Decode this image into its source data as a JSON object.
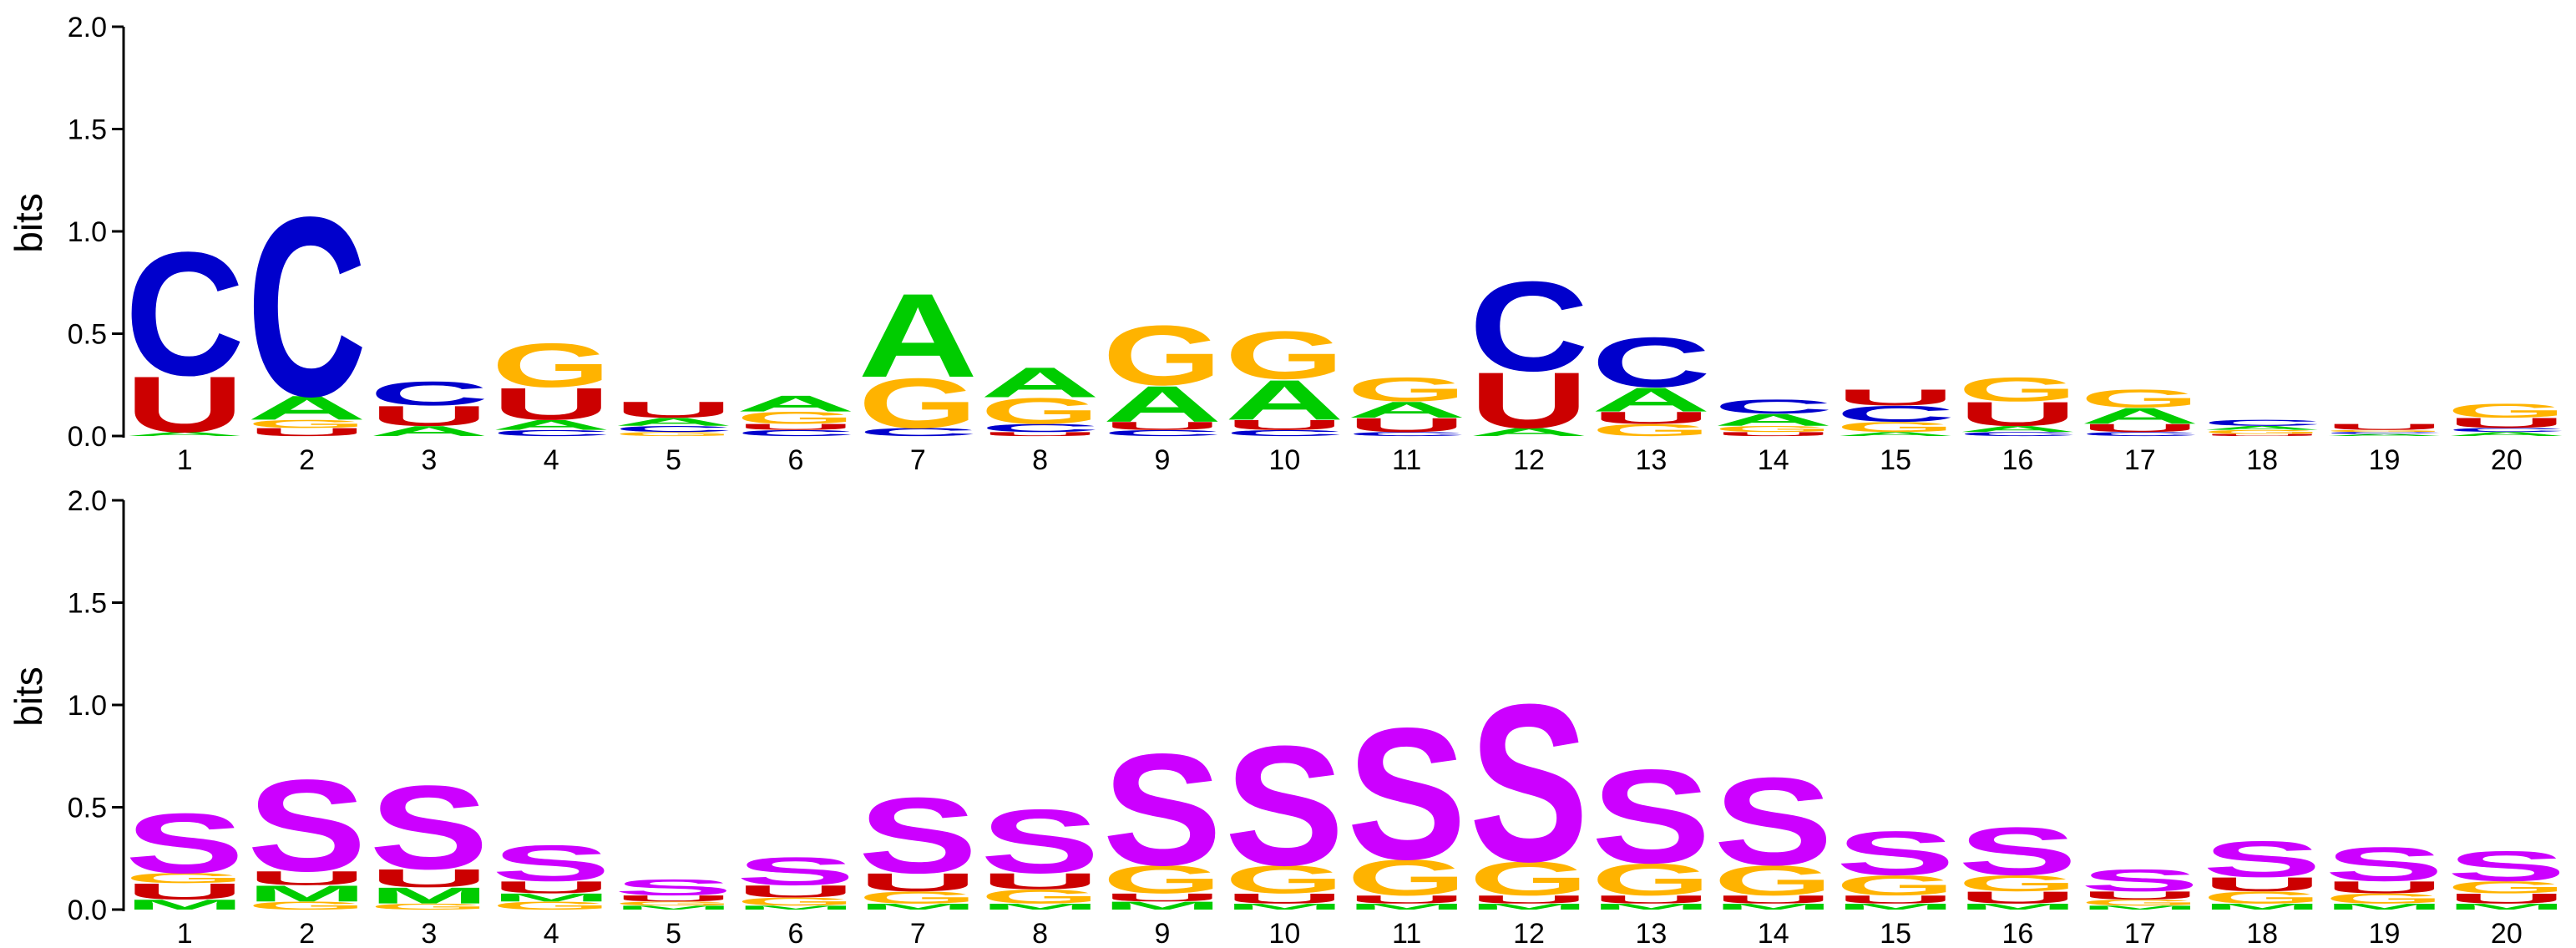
{
  "colors": {
    "A": "#00cc00",
    "C": "#0000cc",
    "G": "#ffb300",
    "U": "#cc0000",
    "S": "#cc00ff",
    "M": "#00cc00"
  },
  "chart_data": [
    {
      "type": "sequence-logo",
      "ylabel": "bits",
      "ylim": [
        0,
        2.0
      ],
      "yticks": [
        "0.0",
        "0.5",
        "1.0",
        "1.5",
        "2.0"
      ],
      "positions": [
        "1",
        "2",
        "3",
        "4",
        "5",
        "6",
        "7",
        "8",
        "9",
        "10",
        "11",
        "12",
        "13",
        "14",
        "15",
        "16",
        "17",
        "18",
        "19",
        "20"
      ],
      "stacks": [
        [
          {
            "letter": "A",
            "height": 0.02
          },
          {
            "letter": "U",
            "height": 0.28
          },
          {
            "letter": "C",
            "height": 0.62
          }
        ],
        [
          {
            "letter": "U",
            "height": 0.04
          },
          {
            "letter": "G",
            "height": 0.04
          },
          {
            "letter": "A",
            "height": 0.12
          },
          {
            "letter": "C",
            "height": 0.9
          }
        ],
        [
          {
            "letter": "A",
            "height": 0.05
          },
          {
            "letter": "U",
            "height": 0.1
          },
          {
            "letter": "C",
            "height": 0.12
          }
        ],
        [
          {
            "letter": "C",
            "height": 0.03
          },
          {
            "letter": "A",
            "height": 0.05
          },
          {
            "letter": "U",
            "height": 0.16
          },
          {
            "letter": "G",
            "height": 0.22
          }
        ],
        [
          {
            "letter": "G",
            "height": 0.02
          },
          {
            "letter": "C",
            "height": 0.03
          },
          {
            "letter": "A",
            "height": 0.04
          },
          {
            "letter": "U",
            "height": 0.08
          }
        ],
        [
          {
            "letter": "C",
            "height": 0.03
          },
          {
            "letter": "U",
            "height": 0.03
          },
          {
            "letter": "G",
            "height": 0.06
          },
          {
            "letter": "A",
            "height": 0.08
          }
        ],
        [
          {
            "letter": "C",
            "height": 0.04
          },
          {
            "letter": "G",
            "height": 0.25
          },
          {
            "letter": "A",
            "height": 0.42
          }
        ],
        [
          {
            "letter": "U",
            "height": 0.02
          },
          {
            "letter": "C",
            "height": 0.04
          },
          {
            "letter": "G",
            "height": 0.13
          },
          {
            "letter": "A",
            "height": 0.15
          }
        ],
        [
          {
            "letter": "C",
            "height": 0.03
          },
          {
            "letter": "U",
            "height": 0.04
          },
          {
            "letter": "A",
            "height": 0.18
          },
          {
            "letter": "G",
            "height": 0.3
          }
        ],
        [
          {
            "letter": "C",
            "height": 0.03
          },
          {
            "letter": "U",
            "height": 0.05
          },
          {
            "letter": "A",
            "height": 0.2
          },
          {
            "letter": "G",
            "height": 0.24
          }
        ],
        [
          {
            "letter": "C",
            "height": 0.02
          },
          {
            "letter": "U",
            "height": 0.07
          },
          {
            "letter": "A",
            "height": 0.08
          },
          {
            "letter": "G",
            "height": 0.12
          }
        ],
        [
          {
            "letter": "A",
            "height": 0.04
          },
          {
            "letter": "U",
            "height": 0.28
          },
          {
            "letter": "C",
            "height": 0.45
          }
        ],
        [
          {
            "letter": "G",
            "height": 0.06
          },
          {
            "letter": "U",
            "height": 0.06
          },
          {
            "letter": "A",
            "height": 0.12
          },
          {
            "letter": "C",
            "height": 0.25
          }
        ],
        [
          {
            "letter": "U",
            "height": 0.02
          },
          {
            "letter": "G",
            "height": 0.03
          },
          {
            "letter": "A",
            "height": 0.06
          },
          {
            "letter": "C",
            "height": 0.07
          }
        ],
        [
          {
            "letter": "A",
            "height": 0.02
          },
          {
            "letter": "G",
            "height": 0.05
          },
          {
            "letter": "C",
            "height": 0.08
          },
          {
            "letter": "U",
            "height": 0.08
          }
        ],
        [
          {
            "letter": "C",
            "height": 0.02
          },
          {
            "letter": "A",
            "height": 0.03
          },
          {
            "letter": "U",
            "height": 0.12
          },
          {
            "letter": "G",
            "height": 0.12
          }
        ],
        [
          {
            "letter": "C",
            "height": 0.02
          },
          {
            "letter": "U",
            "height": 0.04
          },
          {
            "letter": "A",
            "height": 0.08
          },
          {
            "letter": "G",
            "height": 0.09
          }
        ],
        [
          {
            "letter": "U",
            "height": 0.01
          },
          {
            "letter": "G",
            "height": 0.02
          },
          {
            "letter": "A",
            "height": 0.02
          },
          {
            "letter": "C",
            "height": 0.03
          }
        ],
        [
          {
            "letter": "A",
            "height": 0.01
          },
          {
            "letter": "C",
            "height": 0.01
          },
          {
            "letter": "G",
            "height": 0.01
          },
          {
            "letter": "U",
            "height": 0.03
          }
        ],
        [
          {
            "letter": "A",
            "height": 0.02
          },
          {
            "letter": "C",
            "height": 0.02
          },
          {
            "letter": "U",
            "height": 0.05
          },
          {
            "letter": "G",
            "height": 0.07
          }
        ]
      ]
    },
    {
      "type": "sequence-logo",
      "ylabel": "bits",
      "ylim": [
        0,
        2.0
      ],
      "yticks": [
        "0.0",
        "0.5",
        "1.0",
        "1.5",
        "2.0"
      ],
      "positions": [
        "1",
        "2",
        "3",
        "4",
        "5",
        "6",
        "7",
        "8",
        "9",
        "10",
        "11",
        "12",
        "13",
        "14",
        "15",
        "16",
        "17",
        "18",
        "19",
        "20"
      ],
      "stacks": [
        [
          {
            "letter": "M",
            "height": 0.05
          },
          {
            "letter": "U",
            "height": 0.08
          },
          {
            "letter": "G",
            "height": 0.05
          },
          {
            "letter": "S",
            "height": 0.3
          }
        ],
        [
          {
            "letter": "G",
            "height": 0.04
          },
          {
            "letter": "M",
            "height": 0.08
          },
          {
            "letter": "U",
            "height": 0.07
          },
          {
            "letter": "S",
            "height": 0.46
          }
        ],
        [
          {
            "letter": "G",
            "height": 0.03
          },
          {
            "letter": "M",
            "height": 0.08
          },
          {
            "letter": "U",
            "height": 0.09
          },
          {
            "letter": "S",
            "height": 0.42
          }
        ],
        [
          {
            "letter": "G",
            "height": 0.04
          },
          {
            "letter": "M",
            "height": 0.04
          },
          {
            "letter": "U",
            "height": 0.06
          },
          {
            "letter": "S",
            "height": 0.18
          }
        ],
        [
          {
            "letter": "M",
            "height": 0.02
          },
          {
            "letter": "G",
            "height": 0.02
          },
          {
            "letter": "U",
            "height": 0.03
          },
          {
            "letter": "S",
            "height": 0.08
          }
        ],
        [
          {
            "letter": "M",
            "height": 0.02
          },
          {
            "letter": "G",
            "height": 0.04
          },
          {
            "letter": "U",
            "height": 0.06
          },
          {
            "letter": "S",
            "height": 0.14
          }
        ],
        [
          {
            "letter": "M",
            "height": 0.03
          },
          {
            "letter": "G",
            "height": 0.06
          },
          {
            "letter": "U",
            "height": 0.09
          },
          {
            "letter": "S",
            "height": 0.38
          }
        ],
        [
          {
            "letter": "M",
            "height": 0.03
          },
          {
            "letter": "G",
            "height": 0.07
          },
          {
            "letter": "U",
            "height": 0.08
          },
          {
            "letter": "S",
            "height": 0.32
          }
        ],
        [
          {
            "letter": "M",
            "height": 0.04
          },
          {
            "letter": "U",
            "height": 0.04
          },
          {
            "letter": "G",
            "height": 0.14
          },
          {
            "letter": "S",
            "height": 0.56
          }
        ],
        [
          {
            "letter": "M",
            "height": 0.03
          },
          {
            "letter": "U",
            "height": 0.05
          },
          {
            "letter": "G",
            "height": 0.14
          },
          {
            "letter": "S",
            "height": 0.6
          }
        ],
        [
          {
            "letter": "M",
            "height": 0.03
          },
          {
            "letter": "U",
            "height": 0.04
          },
          {
            "letter": "G",
            "height": 0.18
          },
          {
            "letter": "S",
            "height": 0.66
          }
        ],
        [
          {
            "letter": "M",
            "height": 0.03
          },
          {
            "letter": "U",
            "height": 0.04
          },
          {
            "letter": "G",
            "height": 0.17
          },
          {
            "letter": "S",
            "height": 0.79
          }
        ],
        [
          {
            "letter": "M",
            "height": 0.03
          },
          {
            "letter": "U",
            "height": 0.04
          },
          {
            "letter": "G",
            "height": 0.16
          },
          {
            "letter": "S",
            "height": 0.47
          }
        ],
        [
          {
            "letter": "M",
            "height": 0.03
          },
          {
            "letter": "U",
            "height": 0.04
          },
          {
            "letter": "G",
            "height": 0.15
          },
          {
            "letter": "S",
            "height": 0.44
          }
        ],
        [
          {
            "letter": "M",
            "height": 0.03
          },
          {
            "letter": "U",
            "height": 0.04
          },
          {
            "letter": "G",
            "height": 0.1
          },
          {
            "letter": "S",
            "height": 0.22
          }
        ],
        [
          {
            "letter": "M",
            "height": 0.03
          },
          {
            "letter": "U",
            "height": 0.06
          },
          {
            "letter": "G",
            "height": 0.08
          },
          {
            "letter": "S",
            "height": 0.24
          }
        ],
        [
          {
            "letter": "M",
            "height": 0.02
          },
          {
            "letter": "G",
            "height": 0.03
          },
          {
            "letter": "U",
            "height": 0.04
          },
          {
            "letter": "S",
            "height": 0.11
          }
        ],
        [
          {
            "letter": "M",
            "height": 0.03
          },
          {
            "letter": "G",
            "height": 0.06
          },
          {
            "letter": "U",
            "height": 0.07
          },
          {
            "letter": "S",
            "height": 0.18
          }
        ],
        [
          {
            "letter": "M",
            "height": 0.03
          },
          {
            "letter": "G",
            "height": 0.05
          },
          {
            "letter": "U",
            "height": 0.06
          },
          {
            "letter": "S",
            "height": 0.17
          }
        ],
        [
          {
            "letter": "M",
            "height": 0.03
          },
          {
            "letter": "U",
            "height": 0.05
          },
          {
            "letter": "G",
            "height": 0.06
          },
          {
            "letter": "S",
            "height": 0.15
          }
        ]
      ]
    }
  ]
}
